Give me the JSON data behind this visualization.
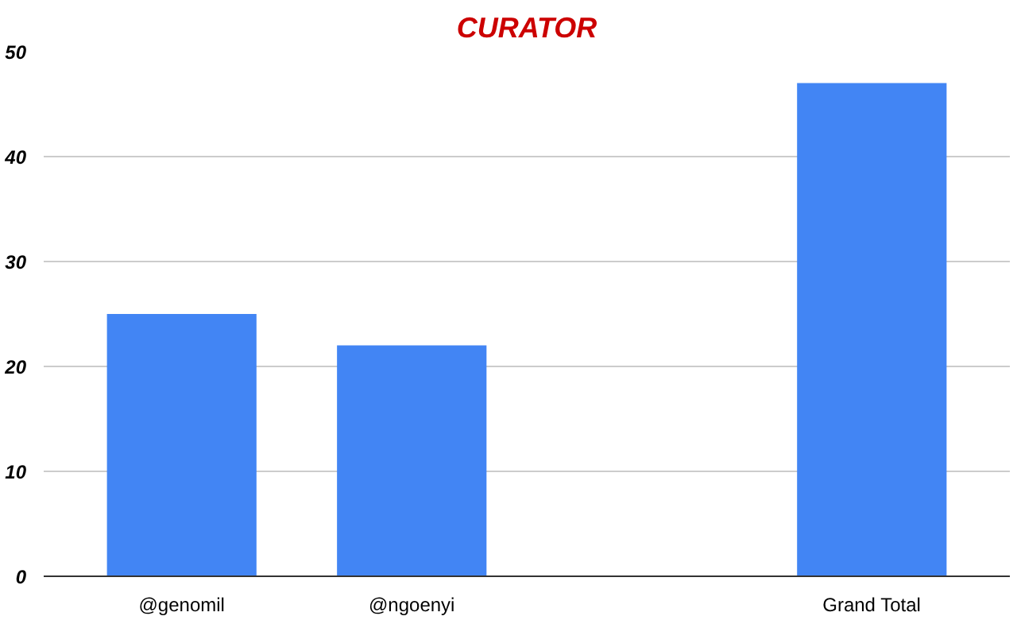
{
  "chart_data": {
    "type": "bar",
    "title": "CURATOR",
    "categories": [
      "@genomil",
      "@ngoenyi",
      null,
      "Grand Total"
    ],
    "values": [
      25,
      22,
      0,
      47
    ],
    "color": "#4285f4",
    "ylim": [
      0,
      50
    ],
    "yticks": [
      0,
      10,
      20,
      30,
      40,
      50
    ],
    "grid": "y"
  }
}
